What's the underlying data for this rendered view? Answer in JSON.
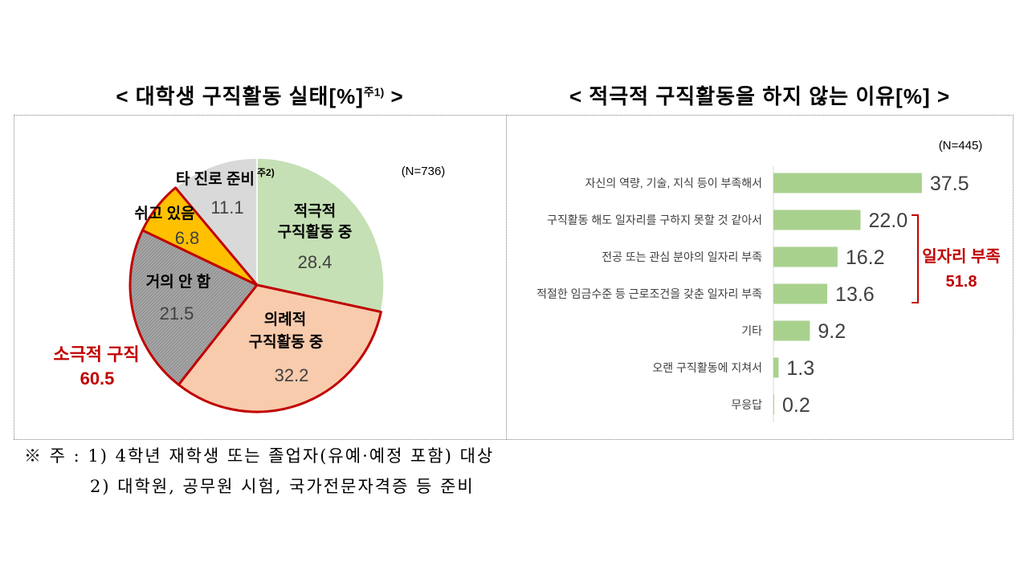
{
  "chart_data": [
    {
      "type": "pie",
      "title": "< 대학생 구직활동 실태[%]",
      "title_note": "주1)",
      "title_close": " >",
      "sample_size": "(N=736)",
      "slices": [
        {
          "label": [
            "적극적",
            "구직활동 중"
          ],
          "value": 28.4,
          "color": "#c5e0b4"
        },
        {
          "label": [
            "의례적",
            "구직활동 중"
          ],
          "value": 32.2,
          "color": "#f8cbad"
        },
        {
          "label": [
            "거의 안 함"
          ],
          "value": 21.5,
          "color": "#a6a6a6"
        },
        {
          "label": [
            "쉬고 있음"
          ],
          "value": 6.8,
          "color": "#ffc000"
        },
        {
          "label": [
            "타 진로 준비"
          ],
          "label_note": "주2)",
          "value": 11.1,
          "color": "#d9d9d9"
        }
      ],
      "group": {
        "label": "소극적 구직",
        "value": 60.5,
        "members": [
          1,
          2,
          3
        ],
        "color": "#c00000"
      }
    },
    {
      "type": "bar",
      "orientation": "horizontal",
      "title": "< 적극적 구직활동을 하지 않는 이유[%] >",
      "sample_size": "(N=445)",
      "categories": [
        "자신의 역량, 기술, 지식 등이 부족해서",
        "구직활동 해도 일자리를 구하지 못할 것 같아서",
        "전공 또는 관심 분야의 일자리 부족",
        "적절한 임금수준 등 근로조건을 갖춘 일자리 부족",
        "기타",
        "오랜 구직활동에 지쳐서",
        "무응답"
      ],
      "values": [
        37.5,
        22.0,
        16.2,
        13.6,
        9.2,
        1.3,
        0.2
      ],
      "bar_color": "#a9d18e",
      "group": {
        "label": "일자리 부족",
        "value": 51.8,
        "members": [
          1,
          2,
          3
        ],
        "color": "#c00000"
      }
    }
  ],
  "footnotes": {
    "line1": "※ 주 : 1) 4학년 재학생 또는 졸업자(유예·예정 포함) 대상",
    "line2": "2) 대학원, 공무원 시험, 국가전문자격증 등 준비"
  }
}
